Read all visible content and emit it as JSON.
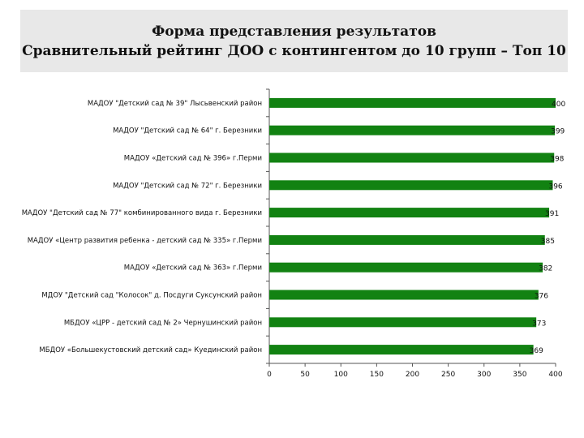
{
  "title": {
    "line1": "Форма представления результатов",
    "line2": "Сравнительный рейтинг ДОО с контингентом до 10 групп – Топ 10"
  },
  "colors": {
    "bar": "#128212",
    "axis": "#555555",
    "text": "#111111"
  },
  "chart_data": {
    "type": "bar",
    "orientation": "horizontal",
    "categories": [
      "МАДОУ \"Детский сад № 39\" Лысьвенский район",
      "МАДОУ \"Детский сад № 64\" г. Березники",
      "МАДОУ «Детский сад № 396» г.Перми",
      "МАДОУ \"Детский сад № 72\" г. Березники",
      "МАДОУ \"Детский сад № 77\" комбинированного вида г. Березники",
      "МАДОУ «Центр развития ребенка - детский сад № 335» г.Перми",
      "МАДОУ «Детский сад № 363» г.Перми",
      "МДОУ \"Детский сад \"Колосок\" д. Посдуги Суксунский район",
      "МБДОУ «ЦРР - детский сад № 2» Чернушинский район",
      "МБДОУ «Большекустовский детский сад» Куединский район"
    ],
    "values": [
      400,
      399,
      398,
      396,
      391,
      385,
      382,
      376,
      373,
      369
    ],
    "value_labels": [
      "400",
      "399",
      "398",
      "396",
      "391",
      "385",
      "382",
      "376",
      "373",
      "369"
    ],
    "xlim": [
      0,
      400
    ],
    "xticks": [
      "0",
      "50",
      "100",
      "150",
      "200",
      "250",
      "300",
      "350",
      "400"
    ],
    "grid": false,
    "legend": "none"
  }
}
